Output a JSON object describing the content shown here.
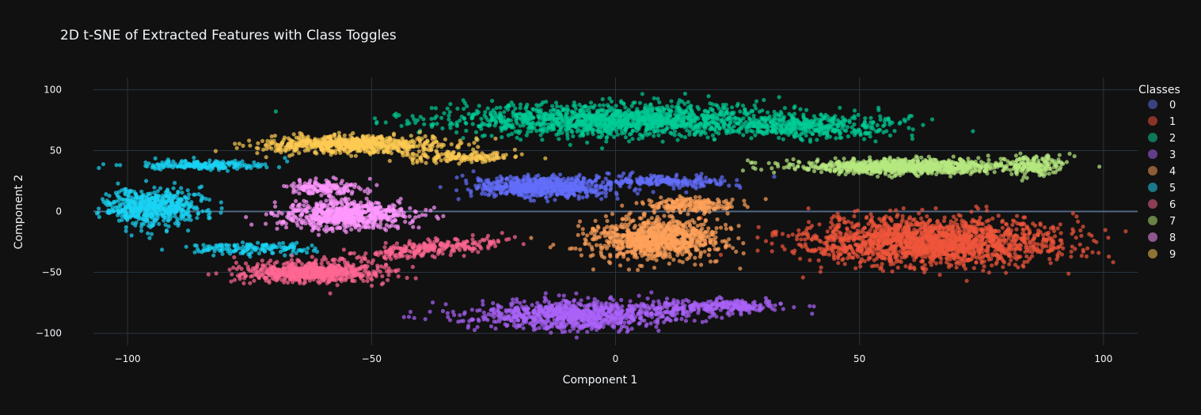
{
  "chart_data": {
    "type": "scatter",
    "title": "2D t-SNE of Extracted Features with Class Toggles",
    "xlabel": "Component 1",
    "ylabel": "Component 2",
    "xlim": [
      -107,
      107
    ],
    "ylim": [
      -110,
      110
    ],
    "xticks": [
      -100,
      -50,
      0,
      50,
      100
    ],
    "yticks": [
      -100,
      -50,
      0,
      50,
      100
    ],
    "xtick_labels": [
      "−100",
      "−50",
      "0",
      "50",
      "100"
    ],
    "ytick_labels": [
      "−100",
      "−50",
      "0",
      "50",
      "100"
    ],
    "grid": true,
    "legend": {
      "title": "Classes",
      "placement": "right"
    },
    "series": [
      {
        "name": "0",
        "color": "#636efa",
        "legend_color": "#3a4283",
        "clusters": [
          [
            -15,
            20,
            12,
            7,
            700,
            0
          ],
          [
            10,
            25,
            12,
            4,
            200,
            0
          ]
        ]
      },
      {
        "name": "1",
        "color": "#ef553b",
        "legend_color": "#8a3427",
        "clusters": [
          [
            65,
            -25,
            22,
            16,
            1800,
            0
          ]
        ]
      },
      {
        "name": "2",
        "color": "#00cc96",
        "legend_color": "#0d7759",
        "clusters": [
          [
            0,
            75,
            28,
            11,
            1500,
            0
          ],
          [
            40,
            70,
            15,
            8,
            400,
            0
          ]
        ]
      },
      {
        "name": "3",
        "color": "#ab63fa",
        "legend_color": "#633d8c",
        "clusters": [
          [
            -8,
            -85,
            18,
            10,
            900,
            0
          ],
          [
            20,
            -78,
            12,
            5,
            250,
            0
          ]
        ]
      },
      {
        "name": "4",
        "color": "#ffa15a",
        "legend_color": "#8e5c37",
        "clusters": [
          [
            8,
            -22,
            11,
            14,
            900,
            0
          ],
          [
            15,
            5,
            8,
            5,
            200,
            0
          ]
        ]
      },
      {
        "name": "5",
        "color": "#19d3f3",
        "legend_color": "#1a7888",
        "clusters": [
          [
            -95,
            3,
            8,
            12,
            600,
            0
          ],
          [
            -85,
            38,
            12,
            3,
            200,
            0
          ],
          [
            -75,
            -30,
            12,
            4,
            150,
            0
          ]
        ]
      },
      {
        "name": "6",
        "color": "#ff6692",
        "legend_color": "#8e3d55",
        "clusters": [
          [
            -62,
            -50,
            12,
            7,
            700,
            0
          ],
          [
            -38,
            -30,
            14,
            5,
            250,
            0.4
          ]
        ]
      },
      {
        "name": "7",
        "color": "#b6e880",
        "legend_color": "#688247",
        "clusters": [
          [
            60,
            37,
            18,
            5,
            900,
            0
          ],
          [
            86,
            38,
            5,
            8,
            150,
            0
          ]
        ]
      },
      {
        "name": "8",
        "color": "#ff97ff",
        "legend_color": "#8e578e",
        "clusters": [
          [
            -55,
            -3,
            11,
            10,
            700,
            0
          ],
          [
            -60,
            20,
            6,
            5,
            150,
            0
          ]
        ]
      },
      {
        "name": "9",
        "color": "#fecb52",
        "legend_color": "#8e7332",
        "clusters": [
          [
            -55,
            55,
            15,
            6,
            700,
            0
          ],
          [
            -33,
            45,
            10,
            4,
            150,
            0
          ]
        ]
      }
    ]
  }
}
